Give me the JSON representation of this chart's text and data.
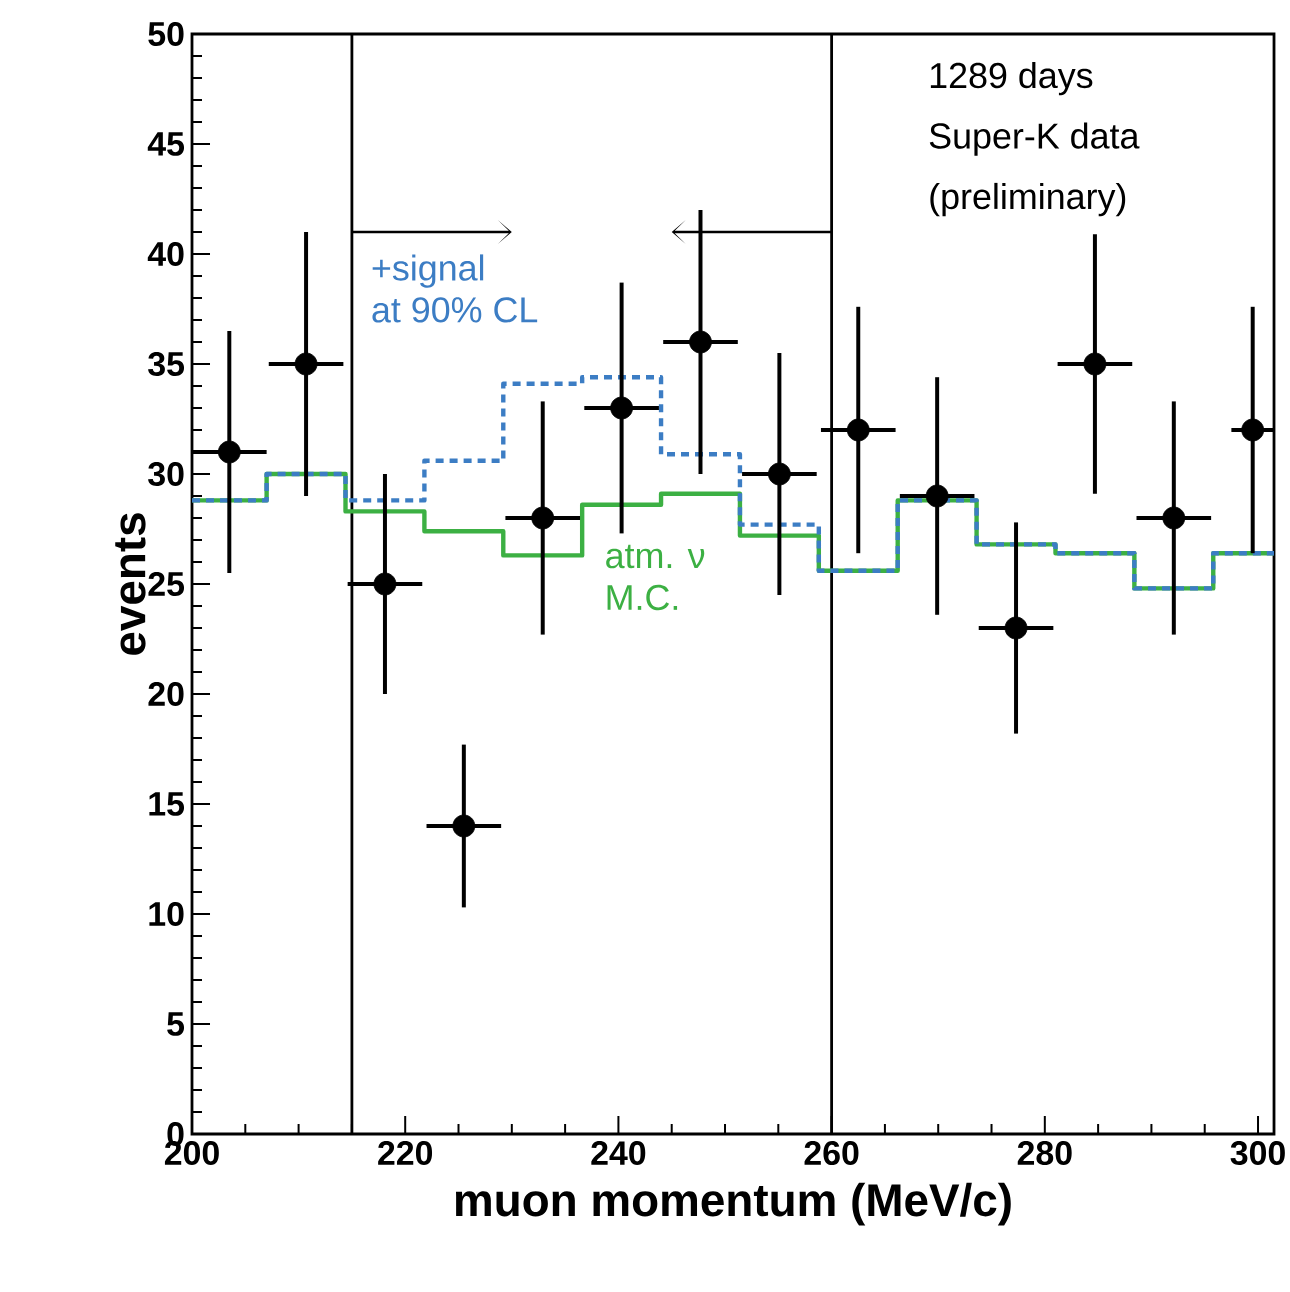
{
  "chart_data": {
    "type": "scatter",
    "xlabel": "muon momentum (MeV/c)",
    "ylabel": "events",
    "xlim": [
      200,
      301.5
    ],
    "ylim": [
      0,
      50
    ],
    "xticks": [
      200,
      220,
      240,
      260,
      280,
      300
    ],
    "yticks": [
      0,
      5,
      10,
      15,
      20,
      25,
      30,
      35,
      40,
      45,
      50
    ],
    "annotations": [
      "1289 days",
      "Super-K data",
      "(preliminary)"
    ],
    "ref_lines": [
      {
        "axis": "x",
        "value": 215,
        "color": "#000000"
      },
      {
        "axis": "x",
        "value": 260,
        "color": "#000000"
      }
    ],
    "series": [
      {
        "type": "step",
        "name": "atm. ν M.C.",
        "color": "#3cb043",
        "line_style": "solid",
        "x": [
          200,
          207,
          214.4,
          221.8,
          229.2,
          236.6,
          244,
          251.4,
          258.8,
          266.2,
          273.6,
          281,
          288.4,
          295.8,
          301.5
        ],
        "values": [
          28.8,
          30,
          28.3,
          27.4,
          26.3,
          28.6,
          29.1,
          27.2,
          25.6,
          28.8,
          26.8,
          26.4,
          24.8,
          26.4,
          26.4
        ]
      },
      {
        "type": "step",
        "name": "+signal at 90% CL",
        "color": "#3c7dc4",
        "line_style": "dashed",
        "x": [
          200,
          207,
          214.4,
          221.8,
          229.2,
          236.6,
          244,
          251.4,
          258.8,
          266.2,
          273.6,
          281,
          288.4,
          295.8,
          301.5
        ],
        "values": [
          28.8,
          30,
          28.8,
          30.6,
          34.1,
          34.4,
          30.9,
          27.7,
          25.6,
          28.8,
          26.8,
          26.4,
          24.8,
          26.4,
          26.4
        ]
      },
      {
        "type": "scatter",
        "color": "#000000",
        "marker": "circle",
        "x": [
          203.5,
          210.7,
          218.1,
          225.5,
          232.9,
          240.3,
          247.7,
          255.1,
          262.5,
          269.9,
          277.3,
          284.7,
          292.1,
          299.5
        ],
        "values": [
          31,
          35,
          25,
          14,
          28,
          33,
          36,
          30,
          32,
          29,
          23,
          35,
          28,
          32
        ],
        "errors": [
          5.5,
          6,
          5,
          3.7,
          5.3,
          5.7,
          6,
          5.5,
          5.6,
          5.4,
          4.8,
          5.9,
          5.3,
          5.6
        ],
        "xerrors": [
          3.5,
          3.5,
          3.5,
          3.5,
          3.5,
          3.5,
          3.5,
          3.5,
          3.5,
          3.5,
          3.5,
          3.5,
          3.5,
          2
        ]
      }
    ]
  }
}
